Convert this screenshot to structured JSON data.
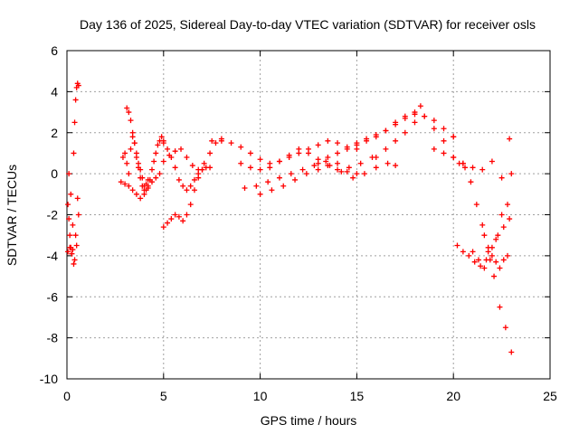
{
  "chart_data": {
    "type": "scatter",
    "title": "Day 136 of 2025, Sidereal Day-to-day VTEC variation (SDTVAR) for receiver osls",
    "xlabel": "GPS time / hours",
    "ylabel": "SDTVAR / TECUs",
    "xlim": [
      0,
      25
    ],
    "ylim": [
      -10,
      6
    ],
    "xticks": [
      "0",
      "5",
      "10",
      "15",
      "20",
      "25"
    ],
    "yticks": [
      "6",
      "4",
      "2",
      "0",
      "-2",
      "-4",
      "-6",
      "-8",
      "-10"
    ],
    "grid": true,
    "marker": "+",
    "color": "#ff0000",
    "series": [
      {
        "name": "SDTVAR",
        "x": [
          0.05,
          0.1,
          0.15,
          0.2,
          0.25,
          0.3,
          0.35,
          0.4,
          0.45,
          0.5,
          0.55,
          0.6,
          0.1,
          0.2,
          0.3,
          0.4,
          0.5,
          0.6,
          0.05,
          0.15,
          0.25,
          0.35,
          0.45,
          0.55,
          2.9,
          3.0,
          3.1,
          3.2,
          3.3,
          3.4,
          3.5,
          3.6,
          3.7,
          3.8,
          3.9,
          4.0,
          4.1,
          4.2,
          3.1,
          3.2,
          3.3,
          3.4,
          3.5,
          3.6,
          3.7,
          3.8,
          3.9,
          4.0,
          4.1,
          4.2,
          4.3,
          4.4,
          4.5,
          4.6,
          4.7,
          4.8,
          4.9,
          5.0,
          2.8,
          3.0,
          3.2,
          3.4,
          3.6,
          3.8,
          4.0,
          4.2,
          4.4,
          4.6,
          4.8,
          5.0,
          5.2,
          5.4,
          5.6,
          5.8,
          6.0,
          6.2,
          6.4,
          6.6,
          6.8,
          7.0,
          7.2,
          7.4,
          5.0,
          5.2,
          5.4,
          5.6,
          5.8,
          6.0,
          6.2,
          6.4,
          6.6,
          6.8,
          7.0,
          5.0,
          5.3,
          5.6,
          5.9,
          6.2,
          6.5,
          6.8,
          7.1,
          7.4,
          7.7,
          8.0,
          7.5,
          8.0,
          8.5,
          9.0,
          9.5,
          10.0,
          10.5,
          11.0,
          11.5,
          12.0,
          12.5,
          13.0,
          13.5,
          14.0,
          14.5,
          15.0,
          9.0,
          9.5,
          10.0,
          10.5,
          11.0,
          11.5,
          12.0,
          12.5,
          13.0,
          13.5,
          14.0,
          14.5,
          15.0,
          9.2,
          9.8,
          10.4,
          11.0,
          11.6,
          12.2,
          12.8,
          13.4,
          14.0,
          14.6,
          15.2,
          15.8,
          10.0,
          10.6,
          11.2,
          11.8,
          12.4,
          13.0,
          13.6,
          14.2,
          14.8,
          15.4,
          16.0,
          16.6,
          17.0,
          13.0,
          13.5,
          14.0,
          14.5,
          15.0,
          15.5,
          16.0,
          16.5,
          17.0,
          17.5,
          18.0,
          18.3,
          15.0,
          15.5,
          16.0,
          16.5,
          17.0,
          17.5,
          18.0,
          18.5,
          19.0,
          19.5,
          20.0,
          16.0,
          16.5,
          17.0,
          17.5,
          18.0,
          18.5,
          19.0,
          19.5,
          20.0,
          20.5,
          19.0,
          19.5,
          20.0,
          20.5,
          21.0,
          21.5,
          22.0,
          22.5,
          23.0,
          20.0,
          20.3,
          20.6,
          20.9,
          21.2,
          21.5,
          21.8,
          22.1,
          22.4,
          22.7,
          23.0,
          20.2,
          20.5,
          20.8,
          21.1,
          21.4,
          21.7,
          22.0,
          22.3,
          22.6,
          22.9,
          21.6,
          21.8,
          22.0,
          22.2,
          22.4,
          22.6,
          22.8,
          21.0,
          21.3,
          21.6,
          21.9,
          22.2,
          22.5,
          22.8,
          22.9
        ],
        "y": [
          -1.5,
          -2.2,
          -3.0,
          -3.6,
          -3.9,
          -3.7,
          1.0,
          2.5,
          3.6,
          4.2,
          4.4,
          4.3,
          0.0,
          -1.0,
          -2.5,
          -4.2,
          -3.5,
          -2.0,
          -3.8,
          -3.6,
          -3.9,
          -4.4,
          -3.0,
          -1.2,
          0.8,
          1.0,
          0.5,
          0.0,
          1.2,
          1.8,
          1.5,
          0.8,
          0.3,
          -0.2,
          -0.6,
          -0.8,
          -0.5,
          -0.3,
          3.2,
          3.0,
          2.6,
          2.0,
          1.5,
          1.0,
          0.5,
          0.2,
          -0.2,
          -0.6,
          -0.8,
          -0.6,
          -0.3,
          0.2,
          0.6,
          1.0,
          1.4,
          1.6,
          1.8,
          1.6,
          -0.4,
          -0.5,
          -0.6,
          -0.8,
          -1.0,
          -1.2,
          -1.0,
          -0.7,
          -0.4,
          -0.2,
          0.0,
          1.5,
          1.2,
          0.8,
          0.3,
          -0.3,
          -0.6,
          -0.8,
          -0.6,
          -0.3,
          0.0,
          0.2,
          0.3,
          0.3,
          -2.6,
          -2.4,
          -2.2,
          -2.0,
          -2.1,
          -2.3,
          -2.0,
          -1.5,
          -0.8,
          -0.2,
          0.2,
          0.6,
          0.9,
          1.1,
          1.2,
          0.8,
          0.4,
          0.2,
          0.5,
          1.0,
          1.5,
          1.7,
          1.6,
          1.6,
          1.5,
          1.3,
          1.0,
          0.7,
          0.5,
          0.6,
          0.8,
          1.0,
          1.2,
          1.4,
          1.6,
          1.5,
          1.3,
          1.2,
          0.5,
          0.3,
          0.2,
          0.3,
          0.6,
          0.9,
          1.2,
          1.0,
          0.7,
          0.4,
          0.2,
          0.1,
          0.0,
          -0.7,
          -0.6,
          -0.4,
          -0.2,
          0.0,
          0.2,
          0.4,
          0.6,
          0.5,
          0.3,
          0.5,
          0.8,
          -1.0,
          -0.8,
          -0.6,
          -0.3,
          0.0,
          0.2,
          0.4,
          0.1,
          -0.2,
          0.0,
          0.3,
          0.5,
          0.4,
          0.5,
          0.8,
          1.0,
          1.2,
          1.4,
          1.6,
          1.8,
          2.1,
          2.5,
          2.8,
          3.0,
          3.3,
          1.5,
          1.7,
          1.9,
          2.1,
          2.4,
          2.7,
          2.9,
          2.8,
          2.6,
          2.2,
          1.8,
          0.8,
          1.2,
          1.6,
          2.0,
          2.5,
          2.8,
          2.2,
          1.6,
          0.8,
          0.5,
          1.2,
          1.0,
          1.8,
          0.5,
          0.3,
          0.2,
          0.6,
          -0.2,
          0.0,
          0.8,
          0.5,
          0.3,
          -0.4,
          -1.5,
          -2.5,
          -3.8,
          -5.0,
          -6.5,
          -7.5,
          -8.7,
          -3.5,
          -3.8,
          -4.0,
          -4.3,
          -4.5,
          -4.2,
          -3.6,
          -3.0,
          -2.6,
          -2.2,
          -3.0,
          -3.6,
          -4.0,
          -4.3,
          -4.6,
          -4.2,
          -4.0,
          -3.8,
          -4.2,
          -4.6,
          -4.2,
          -3.2,
          -2.0,
          -1.5,
          1.7
        ]
      }
    ]
  }
}
